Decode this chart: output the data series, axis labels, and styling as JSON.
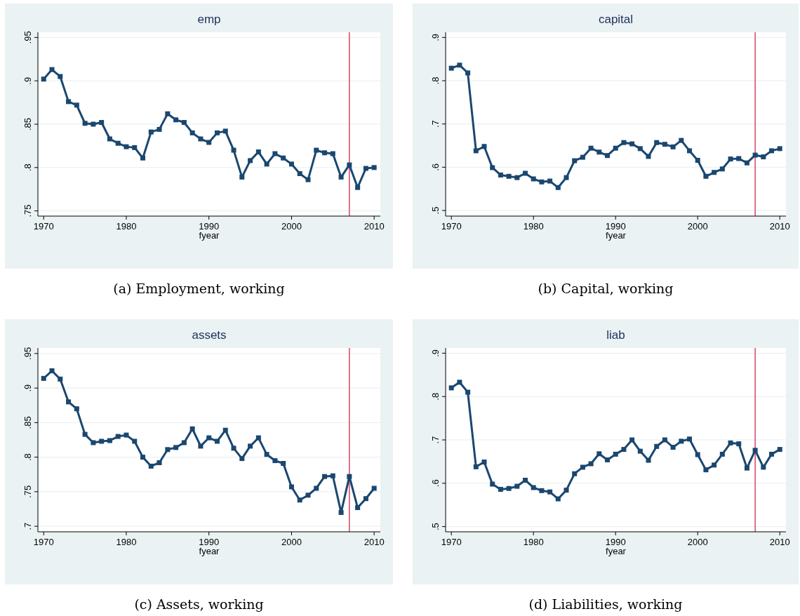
{
  "chart_data": [
    {
      "type": "line",
      "title": "emp",
      "xlabel": "fyear",
      "annotations": [
        "(a) Employment, working"
      ],
      "x": [
        1970,
        1971,
        1972,
        1973,
        1974,
        1975,
        1976,
        1977,
        1978,
        1979,
        1980,
        1981,
        1982,
        1983,
        1984,
        1985,
        1986,
        1987,
        1988,
        1989,
        1990,
        1991,
        1992,
        1993,
        1994,
        1995,
        1996,
        1997,
        1998,
        1999,
        2000,
        2001,
        2002,
        2003,
        2004,
        2005,
        2006,
        2007,
        2008,
        2009,
        2010
      ],
      "series": [
        {
          "color": "#1a476f",
          "values": [
            0.902,
            0.913,
            0.905,
            0.876,
            0.872,
            0.851,
            0.85,
            0.852,
            0.833,
            0.828,
            0.824,
            0.823,
            0.811,
            0.841,
            0.844,
            0.862,
            0.855,
            0.852,
            0.84,
            0.833,
            0.829,
            0.84,
            0.842,
            0.82,
            0.789,
            0.808,
            0.818,
            0.804,
            0.816,
            0.811,
            0.804,
            0.793,
            0.786,
            0.82,
            0.817,
            0.816,
            0.789,
            0.803,
            0.777,
            0.799,
            0.8
          ]
        }
      ],
      "xlim": [
        1969.3,
        2010.75
      ],
      "xticks": [
        1970,
        1980,
        1990,
        2000,
        2010
      ],
      "ylim": [
        0.744,
        0.956
      ],
      "yticks": [
        {
          "value": 0.75,
          "label": ".75"
        },
        {
          "value": 0.8,
          "label": ".8"
        },
        {
          "value": 0.85,
          "label": ".85"
        },
        {
          "value": 0.9,
          "label": ".9"
        },
        {
          "value": 0.95,
          "label": ".95"
        }
      ],
      "grid": "y",
      "marker": "square",
      "line_style": "solid",
      "ref_lines": [
        {
          "axis": "x",
          "value": 2007,
          "color": "#d7264f"
        }
      ]
    },
    {
      "type": "line",
      "title": "capital",
      "xlabel": "fyear",
      "annotations": [
        "(b) Capital, working"
      ],
      "x": [
        1970,
        1971,
        1972,
        1973,
        1974,
        1975,
        1976,
        1977,
        1978,
        1979,
        1980,
        1981,
        1982,
        1983,
        1984,
        1985,
        1986,
        1987,
        1988,
        1989,
        1990,
        1991,
        1992,
        1993,
        1994,
        1995,
        1996,
        1997,
        1998,
        1999,
        2000,
        2001,
        2002,
        2003,
        2004,
        2005,
        2006,
        2007,
        2008,
        2009,
        2010
      ],
      "series": [
        {
          "color": "#1a476f",
          "values": [
            0.829,
            0.836,
            0.818,
            0.638,
            0.648,
            0.599,
            0.582,
            0.579,
            0.576,
            0.586,
            0.573,
            0.566,
            0.568,
            0.553,
            0.576,
            0.615,
            0.623,
            0.644,
            0.635,
            0.627,
            0.644,
            0.657,
            0.654,
            0.643,
            0.625,
            0.657,
            0.653,
            0.647,
            0.662,
            0.638,
            0.616,
            0.579,
            0.588,
            0.596,
            0.619,
            0.62,
            0.61,
            0.628,
            0.624,
            0.638,
            0.643
          ]
        }
      ],
      "xlim": [
        1969.3,
        2010.75
      ],
      "xticks": [
        1970,
        1980,
        1990,
        2000,
        2010
      ],
      "ylim": [
        0.487,
        0.912
      ],
      "yticks": [
        {
          "value": 0.5,
          "label": ".5"
        },
        {
          "value": 0.6,
          "label": ".6"
        },
        {
          "value": 0.7,
          "label": ".7"
        },
        {
          "value": 0.8,
          "label": ".8"
        },
        {
          "value": 0.9,
          "label": ".9"
        }
      ],
      "grid": "y",
      "marker": "square",
      "line_style": "solid",
      "ref_lines": [
        {
          "axis": "x",
          "value": 2007,
          "color": "#d7264f"
        }
      ]
    },
    {
      "type": "line",
      "title": "assets",
      "xlabel": "fyear",
      "annotations": [
        "(c) Assets, working"
      ],
      "x": [
        1970,
        1971,
        1972,
        1973,
        1974,
        1975,
        1976,
        1977,
        1978,
        1979,
        1980,
        1981,
        1982,
        1983,
        1984,
        1985,
        1986,
        1987,
        1988,
        1989,
        1990,
        1991,
        1992,
        1993,
        1994,
        1995,
        1996,
        1997,
        1998,
        1999,
        2000,
        2001,
        2002,
        2003,
        2004,
        2005,
        2006,
        2007,
        2008,
        2009,
        2010
      ],
      "series": [
        {
          "color": "#1a476f",
          "values": [
            0.914,
            0.925,
            0.913,
            0.88,
            0.87,
            0.833,
            0.821,
            0.823,
            0.824,
            0.83,
            0.832,
            0.823,
            0.8,
            0.787,
            0.792,
            0.811,
            0.814,
            0.821,
            0.841,
            0.816,
            0.828,
            0.823,
            0.839,
            0.813,
            0.798,
            0.816,
            0.828,
            0.804,
            0.795,
            0.791,
            0.757,
            0.738,
            0.745,
            0.755,
            0.772,
            0.773,
            0.72,
            0.772,
            0.727,
            0.74,
            0.755
          ]
        }
      ],
      "xlim": [
        1969.3,
        2010.75
      ],
      "xticks": [
        1970,
        1980,
        1990,
        2000,
        2010
      ],
      "ylim": [
        0.692,
        0.958
      ],
      "yticks": [
        {
          "value": 0.7,
          "label": ".7"
        },
        {
          "value": 0.75,
          "label": ".75"
        },
        {
          "value": 0.8,
          "label": ".8"
        },
        {
          "value": 0.85,
          "label": ".85"
        },
        {
          "value": 0.9,
          "label": ".9"
        },
        {
          "value": 0.95,
          "label": ".95"
        }
      ],
      "grid": "y",
      "marker": "square",
      "line_style": "solid",
      "ref_lines": [
        {
          "axis": "x",
          "value": 2007,
          "color": "#d7264f"
        }
      ]
    },
    {
      "type": "line",
      "title": "liab",
      "xlabel": "fyear",
      "annotations": [
        "(d) Liabilities, working"
      ],
      "x": [
        1970,
        1971,
        1972,
        1973,
        1974,
        1975,
        1976,
        1977,
        1978,
        1979,
        1980,
        1981,
        1982,
        1983,
        1984,
        1985,
        1986,
        1987,
        1988,
        1989,
        1990,
        1991,
        1992,
        1993,
        1994,
        1995,
        1996,
        1997,
        1998,
        1999,
        2000,
        2001,
        2002,
        2003,
        2004,
        2005,
        2006,
        2007,
        2008,
        2009,
        2010
      ],
      "series": [
        {
          "color": "#1a476f",
          "values": [
            0.82,
            0.833,
            0.81,
            0.638,
            0.649,
            0.598,
            0.586,
            0.588,
            0.593,
            0.607,
            0.59,
            0.583,
            0.58,
            0.564,
            0.584,
            0.622,
            0.637,
            0.645,
            0.668,
            0.654,
            0.667,
            0.678,
            0.7,
            0.674,
            0.653,
            0.685,
            0.7,
            0.683,
            0.697,
            0.702,
            0.666,
            0.631,
            0.642,
            0.667,
            0.693,
            0.691,
            0.635,
            0.676,
            0.637,
            0.667,
            0.678
          ]
        }
      ],
      "xlim": [
        1969.3,
        2010.75
      ],
      "xticks": [
        1970,
        1980,
        1990,
        2000,
        2010
      ],
      "ylim": [
        0.488,
        0.912
      ],
      "yticks": [
        {
          "value": 0.5,
          "label": ".5"
        },
        {
          "value": 0.6,
          "label": ".6"
        },
        {
          "value": 0.7,
          "label": ".7"
        },
        {
          "value": 0.8,
          "label": ".8"
        },
        {
          "value": 0.9,
          "label": ".9"
        }
      ],
      "grid": "y",
      "marker": "square",
      "line_style": "solid",
      "ref_lines": [
        {
          "axis": "x",
          "value": 2007,
          "color": "#d7264f"
        }
      ]
    }
  ]
}
